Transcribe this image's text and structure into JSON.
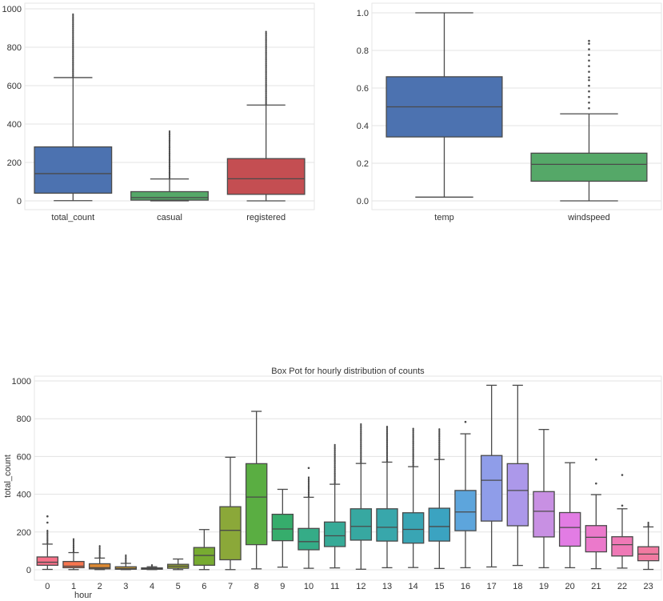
{
  "chart_data": [
    {
      "type": "boxplot",
      "title": "",
      "xlabel": "",
      "ylabel": "",
      "ylim": [
        -50,
        1030
      ],
      "yticks": [
        0,
        200,
        400,
        600,
        800,
        1000
      ],
      "ytick_labels": [
        "0",
        "200",
        "400",
        "600",
        "800",
        "1000"
      ],
      "grid": true,
      "categories": [
        "total_count",
        "casual",
        "registered"
      ],
      "boxes": [
        {
          "name": "total_count",
          "color": "#4c72b0",
          "whislo": 1,
          "q1": 40,
          "med": 142,
          "q3": 281,
          "whishi": 642,
          "fliers_min": 645,
          "fliers_max": 977
        },
        {
          "name": "casual",
          "color": "#55a868",
          "whislo": 0,
          "q1": 4,
          "med": 17,
          "q3": 48,
          "whishi": 114,
          "fliers_min": 116,
          "fliers_max": 367
        },
        {
          "name": "registered",
          "color": "#c44e52",
          "whislo": 0,
          "q1": 34,
          "med": 115,
          "q3": 220,
          "whishi": 499,
          "fliers_min": 501,
          "fliers_max": 886
        }
      ]
    },
    {
      "type": "boxplot",
      "title": "",
      "xlabel": "",
      "ylabel": "",
      "ylim": [
        -0.05,
        1.04
      ],
      "yticks": [
        0.0,
        0.2,
        0.4,
        0.6,
        0.8,
        1.0
      ],
      "ytick_labels": [
        "0.0",
        "0.2",
        "0.4",
        "0.6",
        "0.8",
        "1.0"
      ],
      "grid": true,
      "categories": [
        "temp",
        "windspeed"
      ],
      "boxes": [
        {
          "name": "temp",
          "color": "#4c72b0",
          "whislo": 0.02,
          "q1": 0.34,
          "med": 0.5,
          "q3": 0.66,
          "whishi": 1.0,
          "fliers": []
        },
        {
          "name": "windspeed",
          "color": "#55a868",
          "whislo": 0.0,
          "q1": 0.1045,
          "med": 0.194,
          "q3": 0.2537,
          "whishi": 0.4627,
          "fliers": [
            0.4925,
            0.5224,
            0.5522,
            0.5821,
            0.6119,
            0.6418,
            0.6567,
            0.6866,
            0.7164,
            0.7463,
            0.7761,
            0.806,
            0.8358,
            0.8507
          ]
        }
      ]
    },
    {
      "type": "boxplot",
      "title": "Box Pot for hourly distribution of counts",
      "xlabel": "hour",
      "ylabel": "total_count",
      "ylim": [
        -50,
        1030
      ],
      "yticks": [
        0,
        200,
        400,
        600,
        800,
        1000
      ],
      "ytick_labels": [
        "0",
        "200",
        "400",
        "600",
        "800",
        "1000"
      ],
      "grid": true,
      "categories": [
        "0",
        "1",
        "2",
        "3",
        "4",
        "5",
        "6",
        "7",
        "8",
        "9",
        "10",
        "11",
        "12",
        "13",
        "14",
        "15",
        "16",
        "17",
        "18",
        "19",
        "20",
        "21",
        "22",
        "23"
      ],
      "boxes": [
        {
          "name": "0",
          "color": "#f77189",
          "whislo": 2,
          "q1": 24,
          "med": 40,
          "q3": 68,
          "whishi": 136,
          "fliers_min": 140,
          "fliers_max": 210,
          "extra_fliers": [
            250,
            283
          ]
        },
        {
          "name": "1",
          "color": "#f7754f",
          "whislo": 1,
          "q1": 11,
          "med": 19,
          "q3": 44,
          "whishi": 91,
          "fliers_min": 95,
          "fliers_max": 168,
          "extra_fliers": []
        },
        {
          "name": "2",
          "color": "#dc8932",
          "whislo": 1,
          "q1": 5,
          "med": 11,
          "q3": 32,
          "whishi": 62,
          "fliers_min": 65,
          "fliers_max": 132,
          "extra_fliers": []
        },
        {
          "name": "3",
          "color": "#c39532",
          "whislo": 1,
          "q1": 3,
          "med": 6,
          "q3": 16,
          "whishi": 34,
          "fliers_min": 36,
          "fliers_max": 79,
          "extra_fliers": []
        },
        {
          "name": "4",
          "color": "#ae9d31",
          "whislo": 1,
          "q1": 3,
          "med": 6,
          "q3": 10,
          "whishi": 16,
          "fliers_min": 18,
          "fliers_max": 28,
          "extra_fliers": []
        },
        {
          "name": "5",
          "color": "#97a431",
          "whislo": 1,
          "q1": 8,
          "med": 19,
          "q3": 29,
          "whishi": 57,
          "fliers_min": 0,
          "fliers_max": 0,
          "extra_fliers": []
        },
        {
          "name": "6",
          "color": "#77ab31",
          "whislo": 1,
          "q1": 24,
          "med": 76,
          "q3": 118,
          "whishi": 213,
          "fliers_min": 0,
          "fliers_max": 0,
          "extra_fliers": []
        },
        {
          "name": "7",
          "color": "#8ba839",
          "whislo": 1,
          "q1": 53,
          "med": 209,
          "q3": 334,
          "whishi": 596,
          "fliers_min": 0,
          "fliers_max": 0,
          "extra_fliers": []
        },
        {
          "name": "8",
          "color": "#5aae42",
          "whislo": 5,
          "q1": 133,
          "med": 385,
          "q3": 562,
          "whishi": 839,
          "fliers_min": 0,
          "fliers_max": 0,
          "extra_fliers": []
        },
        {
          "name": "9",
          "color": "#36ad6c",
          "whislo": 14,
          "q1": 154,
          "med": 216,
          "q3": 294,
          "whishi": 426,
          "fliers_min": 0,
          "fliers_max": 0,
          "extra_fliers": []
        },
        {
          "name": "10",
          "color": "#35ac87",
          "whislo": 8,
          "q1": 106,
          "med": 149,
          "q3": 219,
          "whishi": 384,
          "fliers_min": 388,
          "fliers_max": 496,
          "extra_fliers": [
            539
          ]
        },
        {
          "name": "11",
          "color": "#36aa97",
          "whislo": 10,
          "q1": 123,
          "med": 180,
          "q3": 253,
          "whishi": 453,
          "fliers_min": 458,
          "fliers_max": 665,
          "extra_fliers": []
        },
        {
          "name": "12",
          "color": "#37a8a1",
          "whislo": 3,
          "q1": 157,
          "med": 230,
          "q3": 323,
          "whishi": 563,
          "fliers_min": 568,
          "fliers_max": 776,
          "extra_fliers": []
        },
        {
          "name": "13",
          "color": "#38a7ab",
          "whislo": 11,
          "q1": 152,
          "med": 225,
          "q3": 323,
          "whishi": 570,
          "fliers_min": 575,
          "fliers_max": 760,
          "extra_fliers": []
        },
        {
          "name": "14",
          "color": "#39a5b4",
          "whislo": 12,
          "q1": 141,
          "med": 214,
          "q3": 302,
          "whishi": 546,
          "fliers_min": 551,
          "fliers_max": 750,
          "extra_fliers": []
        },
        {
          "name": "15",
          "color": "#3ba3c1",
          "whislo": 7,
          "q1": 152,
          "med": 229,
          "q3": 326,
          "whishi": 584,
          "fliers_min": 589,
          "fliers_max": 750,
          "extra_fliers": []
        },
        {
          "name": "16",
          "color": "#5da5dc",
          "whislo": 11,
          "q1": 207,
          "med": 306,
          "q3": 420,
          "whishi": 720,
          "fliers_min": 0,
          "fliers_max": 0,
          "extra_fliers": [
            783
          ]
        },
        {
          "name": "17",
          "color": "#8f9de9",
          "whislo": 15,
          "q1": 258,
          "med": 474,
          "q3": 605,
          "whishi": 977,
          "fliers_min": 0,
          "fliers_max": 0,
          "extra_fliers": []
        },
        {
          "name": "18",
          "color": "#ac98ea",
          "whislo": 23,
          "q1": 233,
          "med": 420,
          "q3": 562,
          "whishi": 977,
          "fliers_min": 0,
          "fliers_max": 0,
          "extra_fliers": []
        },
        {
          "name": "19",
          "color": "#c890e3",
          "whislo": 11,
          "q1": 174,
          "med": 310,
          "q3": 414,
          "whishi": 743,
          "fliers_min": 0,
          "fliers_max": 0,
          "extra_fliers": []
        },
        {
          "name": "20",
          "color": "#e27ce4",
          "whislo": 11,
          "q1": 125,
          "med": 224,
          "q3": 303,
          "whishi": 567,
          "fliers_min": 0,
          "fliers_max": 0,
          "extra_fliers": []
        },
        {
          "name": "21",
          "color": "#eb79cb",
          "whislo": 6,
          "q1": 95,
          "med": 172,
          "q3": 234,
          "whishi": 398,
          "fliers_min": 0,
          "fliers_max": 0,
          "extra_fliers": [
            457,
            584
          ]
        },
        {
          "name": "22",
          "color": "#ef79b6",
          "whislo": 9,
          "q1": 73,
          "med": 133,
          "q3": 175,
          "whishi": 323,
          "fliers_min": 0,
          "fliers_max": 0,
          "extra_fliers": [
            340,
            502
          ]
        },
        {
          "name": "23",
          "color": "#f17aa1",
          "whislo": 2,
          "q1": 48,
          "med": 83,
          "q3": 122,
          "whishi": 227,
          "fliers_min": 230,
          "fliers_max": 257,
          "extra_fliers": []
        }
      ]
    }
  ]
}
